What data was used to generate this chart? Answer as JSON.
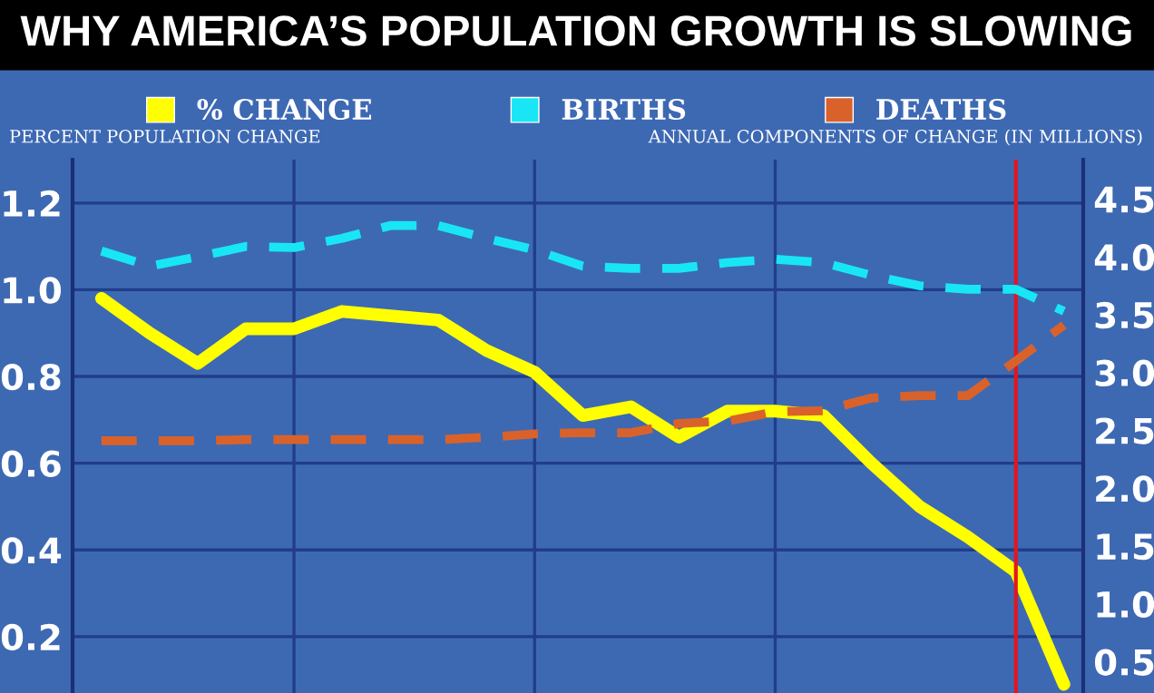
{
  "chart_data": {
    "type": "line",
    "title": "WHY AMERICA’S POPULATION GROWTH IS SLOWING",
    "ylabel": "PERCENT POPULATION CHANGE",
    "y2label": "ANNUAL COMPONENTS OF CHANGE (IN MILLIONS)",
    "categories": [
      null,
      null,
      null,
      null,
      null,
      null,
      null,
      null,
      null,
      null,
      null,
      null,
      null,
      null,
      null,
      null,
      null,
      null,
      null,
      null,
      null
    ],
    "ylim": [
      0.07,
      1.3
    ],
    "yticks": [
      0.2,
      0.4,
      0.6,
      0.8,
      {
        "value": 1.0,
        "label": "1.0"
      },
      1.2
    ],
    "y2lim": [
      0.23,
      4.84
    ],
    "y2ticks": [
      0.5,
      {
        "value": 1.0,
        "label": "1.0"
      },
      1.5,
      {
        "value": 2.0,
        "label": "2.0"
      },
      2.5,
      {
        "value": 3.0,
        "label": "3.0"
      },
      3.5,
      {
        "value": 4.0,
        "label": "4.0"
      },
      4.5
    ],
    "series": [
      {
        "name": "% CHANGE",
        "color": "#ffff00",
        "line_style": "solid",
        "values": [
          0.98,
          0.9,
          0.83,
          0.91,
          0.91,
          0.95,
          0.94,
          0.93,
          0.86,
          0.81,
          0.71,
          0.73,
          0.66,
          0.72,
          0.72,
          0.71,
          0.6,
          0.5,
          0.43,
          0.35,
          0.09
        ]
      },
      {
        "name": "BIRTHS",
        "color": "#19e6f5",
        "line_style": "dashed",
        "axis": "y2",
        "values": [
          4.05,
          3.92,
          4.0,
          4.09,
          4.08,
          4.16,
          4.27,
          4.27,
          4.16,
          4.06,
          3.92,
          3.9,
          3.9,
          3.95,
          3.98,
          3.95,
          3.84,
          3.75,
          3.72,
          3.72,
          3.53
        ]
      },
      {
        "name": "DEATHS",
        "color": "#d9622b",
        "line_style": "dashed",
        "axis": "y2",
        "values": [
          2.41,
          2.41,
          2.41,
          2.42,
          2.42,
          2.42,
          2.42,
          2.42,
          2.44,
          2.47,
          2.48,
          2.48,
          2.56,
          2.58,
          2.66,
          2.67,
          2.78,
          2.8,
          2.8,
          3.1,
          3.41
        ]
      }
    ],
    "grid": true,
    "legend": "top"
  }
}
